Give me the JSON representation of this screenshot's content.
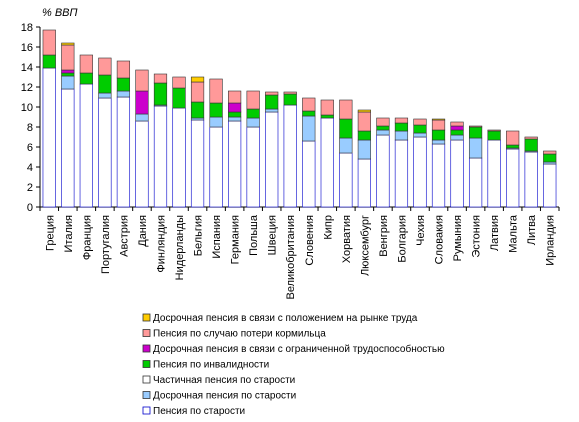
{
  "chart_data": {
    "type": "bar",
    "stacked": true,
    "unit_label": "% ВВП",
    "ylim": [
      0,
      18
    ],
    "yticks": [
      0,
      2,
      4,
      6,
      8,
      10,
      12,
      14,
      16,
      18
    ],
    "grid": false,
    "legend_position": "bottom",
    "categories": [
      "Греция",
      "Италия",
      "Франция",
      "Португалия",
      "Австрия",
      "Дания",
      "Финляндия",
      "Нидерланды",
      "Бельгия",
      "Испания",
      "Германия",
      "Польша",
      "Швеция",
      "Великобритания",
      "Словения",
      "Кипр",
      "Хорватия",
      "Люксембург",
      "Венгрия",
      "Болгария",
      "Чехия",
      "Словакия",
      "Румыния",
      "Эстония",
      "Латвия",
      "Мальта",
      "Литва",
      "Ирландия"
    ],
    "series": [
      {
        "name": "Пенсия по старости",
        "color": "#ffffff",
        "border": "#0000cc",
        "values": [
          13.9,
          11.8,
          12.3,
          10.9,
          11.0,
          8.6,
          10.1,
          9.9,
          8.7,
          8.0,
          8.6,
          8.0,
          9.5,
          10.2,
          6.6,
          8.9,
          5.4,
          4.8,
          7.2,
          6.7,
          7.0,
          6.3,
          6.7,
          4.9,
          6.7,
          5.8,
          5.5,
          4.3
        ]
      },
      {
        "name": "Досрочная пенсия по старости",
        "color": "#99ccff",
        "border": "#333333",
        "values": [
          0.0,
          1.3,
          0.0,
          0.5,
          0.6,
          0.7,
          0.1,
          0.0,
          0.2,
          1.0,
          0.4,
          0.9,
          0.3,
          0.0,
          2.5,
          0.0,
          1.5,
          1.9,
          0.5,
          0.9,
          0.4,
          0.4,
          0.5,
          2.0,
          0.0,
          0.1,
          0.1,
          0.2
        ]
      },
      {
        "name": "Частичная пенсия по старости",
        "color": "#ffffff",
        "border": "#333333",
        "values": [
          0,
          0,
          0,
          0,
          0,
          0,
          0,
          0,
          0,
          0,
          0,
          0,
          0,
          0,
          0,
          0,
          0,
          0,
          0,
          0,
          0,
          0,
          0,
          0,
          0,
          0,
          0,
          0
        ]
      },
      {
        "name": "Пенсия по инвалидности",
        "color": "#00cc00",
        "border": "#333333",
        "values": [
          1.3,
          0.3,
          1.1,
          1.8,
          1.3,
          0.0,
          2.2,
          2.0,
          1.6,
          1.4,
          0.5,
          0.9,
          1.4,
          1.1,
          0.5,
          0.3,
          1.9,
          0.9,
          0.4,
          0.8,
          0.8,
          1.0,
          0.5,
          1.1,
          0.9,
          0.3,
          1.2,
          0.8
        ]
      },
      {
        "name": "Досрочная пенсия в связи с ограниченной трудоспособностью",
        "color": "#cc00cc",
        "border": "#333333",
        "values": [
          0.0,
          0.3,
          0.0,
          0.0,
          0.0,
          2.3,
          0.0,
          0.0,
          0.0,
          0.0,
          0.9,
          0.0,
          0.0,
          0.0,
          0.0,
          0.0,
          0.0,
          0.0,
          0.0,
          0.0,
          0.0,
          0.0,
          0.4,
          0.0,
          0.0,
          0.0,
          0.0,
          0.0
        ]
      },
      {
        "name": "Пенсия по случаю потери кормильца",
        "color": "#ff9999",
        "border": "#333333",
        "values": [
          2.5,
          2.5,
          1.8,
          1.7,
          1.7,
          2.1,
          0.9,
          1.1,
          2.0,
          2.4,
          1.2,
          1.8,
          0.3,
          0.2,
          1.3,
          1.5,
          1.9,
          1.9,
          0.8,
          0.5,
          0.6,
          1.0,
          0.4,
          0.1,
          0.1,
          1.4,
          0.2,
          0.3
        ]
      },
      {
        "name": "Досрочная пенсия в связи с положением на рынке труда",
        "color": "#ffcc00",
        "border": "#333333",
        "values": [
          0.0,
          0.2,
          0.0,
          0.0,
          0.0,
          0.0,
          0.0,
          0.0,
          0.5,
          0.0,
          0.0,
          0.0,
          0.0,
          0.0,
          0.0,
          0.0,
          0.0,
          0.2,
          0.0,
          0.0,
          0.0,
          0.1,
          0.0,
          0.0,
          0.0,
          0.0,
          0.0,
          0.0
        ]
      }
    ],
    "legend_order": [
      6,
      5,
      4,
      3,
      2,
      1,
      0
    ]
  }
}
